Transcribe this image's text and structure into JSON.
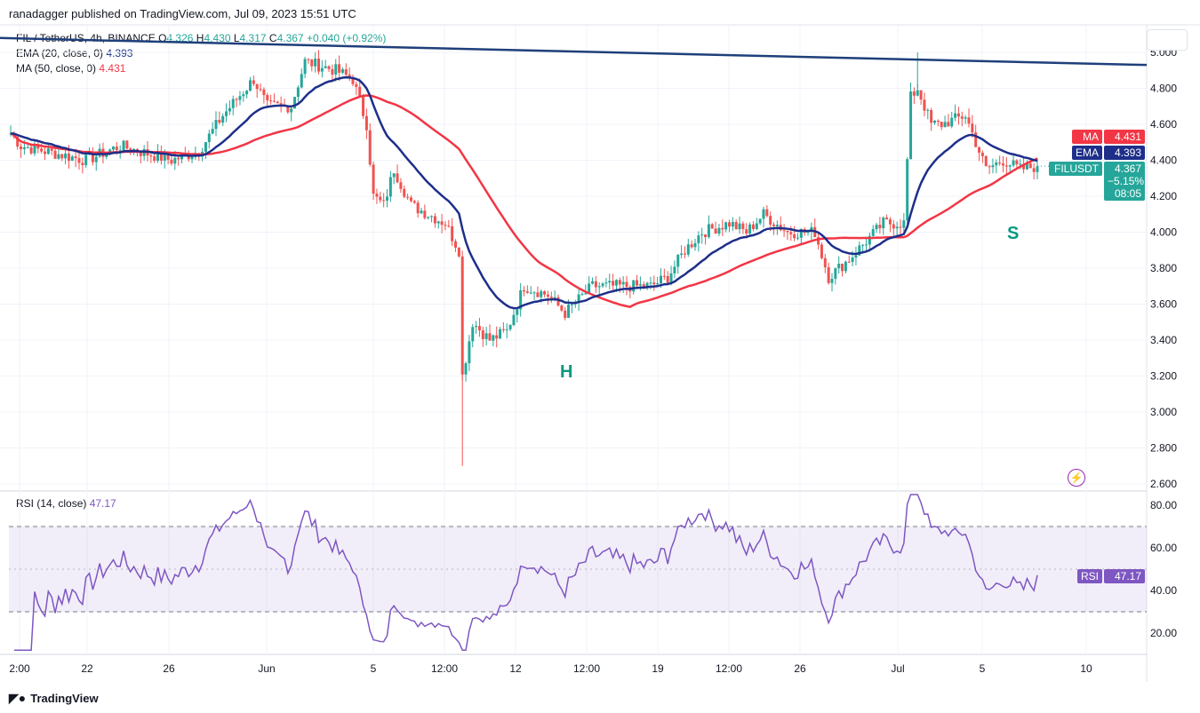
{
  "header": {
    "published": "ranadagger published on TradingView.com, Jul 09, 2023 15:51 UTC",
    "symbol": "FIL / TetherUS, 4h, BINANCE",
    "o_label": "O",
    "o": "4.326",
    "h_label": "H",
    "h": "4.430",
    "l_label": "L",
    "l": "4.317",
    "c_label": "C",
    "c": "4.367",
    "change": "+0.040 (+0.92%)",
    "ema_label": "EMA (20, close, 0)",
    "ema": "4.393",
    "ma_label": "MA (50, close, 0)",
    "ma": "4.431",
    "rsi_label": "RSI (14, close)",
    "rsi": "47.17"
  },
  "tags": {
    "ma": "MA",
    "ma_val": "4.431",
    "ema": "EMA",
    "ema_val": "4.393",
    "sym": "FILUSDT",
    "price": "4.367",
    "pct": "−5.15%",
    "timer": "08:05",
    "rsi": "RSI",
    "rsi_val": "47.17"
  },
  "annotations": {
    "h": "H",
    "s": "S"
  },
  "brand": "TradingView",
  "colors": {
    "up": "#26a69a",
    "down": "#ef5350",
    "ema": "#1e2f8a",
    "ma": "#f23645",
    "trend": "#1e3f7a",
    "rsi": "#7e57c2"
  },
  "chart_data": {
    "type": "candlestick",
    "ylim": [
      2.6,
      5.08
    ],
    "yticks": [
      "5.000",
      "4.800",
      "4.600",
      "4.400",
      "4.200",
      "4.000",
      "3.800",
      "3.600",
      "3.400",
      "3.200",
      "3.000",
      "2.800",
      "2.600"
    ],
    "xticks": [
      "2:00",
      "22",
      "26",
      "Jun",
      "5",
      "12:00",
      "12",
      "12:00",
      "19",
      "12:00",
      "26",
      "Jul",
      "5",
      "10"
    ],
    "rsi_ticks": [
      "80.00",
      "60.00",
      "40.00",
      "20.00"
    ],
    "rsi_band": [
      30,
      70
    ],
    "close_keypoints": [
      [
        0,
        4.55
      ],
      [
        3,
        4.48
      ],
      [
        22,
        4.4
      ],
      [
        32,
        4.48
      ],
      [
        47,
        4.4
      ],
      [
        55,
        4.45
      ],
      [
        62,
        4.65
      ],
      [
        71,
        4.85
      ],
      [
        75,
        4.7
      ],
      [
        82,
        4.7
      ],
      [
        86,
        4.95
      ],
      [
        95,
        4.9
      ],
      [
        100,
        4.85
      ],
      [
        104,
        4.6
      ],
      [
        106,
        4.2
      ],
      [
        109,
        4.15
      ],
      [
        112,
        4.35
      ],
      [
        117,
        4.15
      ],
      [
        127,
        4.05
      ],
      [
        131,
        3.9
      ],
      [
        132,
        3.2
      ],
      [
        135,
        3.5
      ],
      [
        140,
        3.4
      ],
      [
        145,
        3.45
      ],
      [
        150,
        3.7
      ],
      [
        157,
        3.65
      ],
      [
        162,
        3.55
      ],
      [
        170,
        3.7
      ],
      [
        177,
        3.7
      ],
      [
        187,
        3.7
      ],
      [
        192,
        3.75
      ],
      [
        197,
        3.9
      ],
      [
        202,
        4.0
      ],
      [
        210,
        4.05
      ],
      [
        215,
        4.0
      ],
      [
        220,
        4.1
      ],
      [
        227,
        4.0
      ],
      [
        235,
        4.0
      ],
      [
        239,
        3.75
      ],
      [
        245,
        3.85
      ],
      [
        250,
        3.95
      ],
      [
        255,
        4.05
      ],
      [
        261,
        4.05
      ],
      [
        263,
        4.75
      ],
      [
        265,
        4.8
      ],
      [
        269,
        4.6
      ],
      [
        272,
        4.6
      ],
      [
        279,
        4.65
      ],
      [
        282,
        4.5
      ],
      [
        285,
        4.35
      ],
      [
        290,
        4.4
      ],
      [
        295,
        4.35
      ],
      [
        300,
        4.367
      ]
    ],
    "trendline": [
      [
        0,
        5.08
      ],
      [
        319,
        4.93
      ]
    ]
  }
}
